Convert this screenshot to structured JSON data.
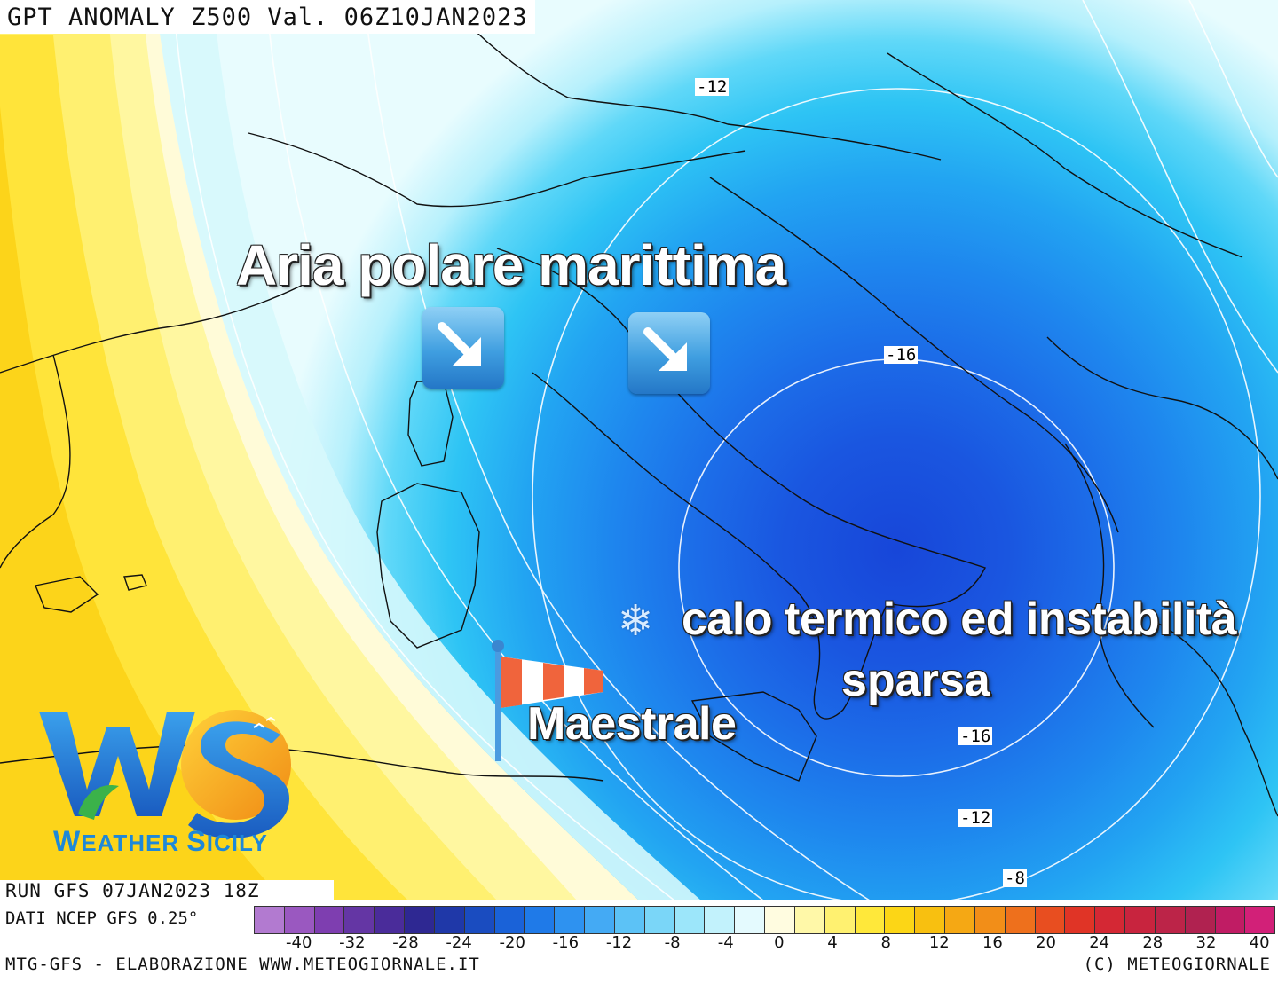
{
  "title": "GPT ANOMALY Z500 Val. 06Z10JAN2023",
  "run": "RUN GFS 07JAN2023 18Z",
  "data_source": "DATI NCEP GFS 0.25°",
  "footer_left": "MTG-GFS - ELABORAZIONE WWW.METEOGIORNALE.IT",
  "footer_right": "(C) METEOGIORNALE",
  "annotations": {
    "headline": "Aria polare marittima",
    "calo_line1": "calo termico ed instabilità",
    "calo_line2": "sparsa",
    "maestrale": "Maestrale",
    "snow_icon": "snowflake-icon",
    "arrow_icon": "arrow-down-right-icon",
    "windsock_icon": "windsock-icon"
  },
  "contour_labels": [
    "-12",
    "-16",
    "-16",
    "-12",
    "-8"
  ],
  "logo": {
    "letters": "WS",
    "name_first": "W",
    "name_rest": "EATHER ",
    "name_second": "S",
    "name_rest2": "ICILY"
  },
  "scale": {
    "labels": [
      "-40",
      "-32",
      "-28",
      "-24",
      "-20",
      "-16",
      "-12",
      "-8",
      "-4",
      "0",
      "4",
      "8",
      "12",
      "16",
      "20",
      "24",
      "28",
      "32",
      "40"
    ],
    "colors": [
      "#b27ad0",
      "#9a58c0",
      "#7e3eb0",
      "#6436a4",
      "#4a2c9a",
      "#2e2892",
      "#1f38a8",
      "#1a4cc0",
      "#1a62d8",
      "#1f7ae8",
      "#2e92f0",
      "#44aaf4",
      "#5cc2f6",
      "#7ad6f8",
      "#9ce6fa",
      "#c2f2fc",
      "#e4fafe",
      "#fffce0",
      "#fff8a8",
      "#fff170",
      "#ffe83a",
      "#fcd616",
      "#f8c010",
      "#f5a814",
      "#f28e18",
      "#ee701c",
      "#e84e20",
      "#e03426",
      "#d42834",
      "#c8243e",
      "#bc2448",
      "#b02250",
      "#c01c64",
      "#d22078"
    ]
  }
}
